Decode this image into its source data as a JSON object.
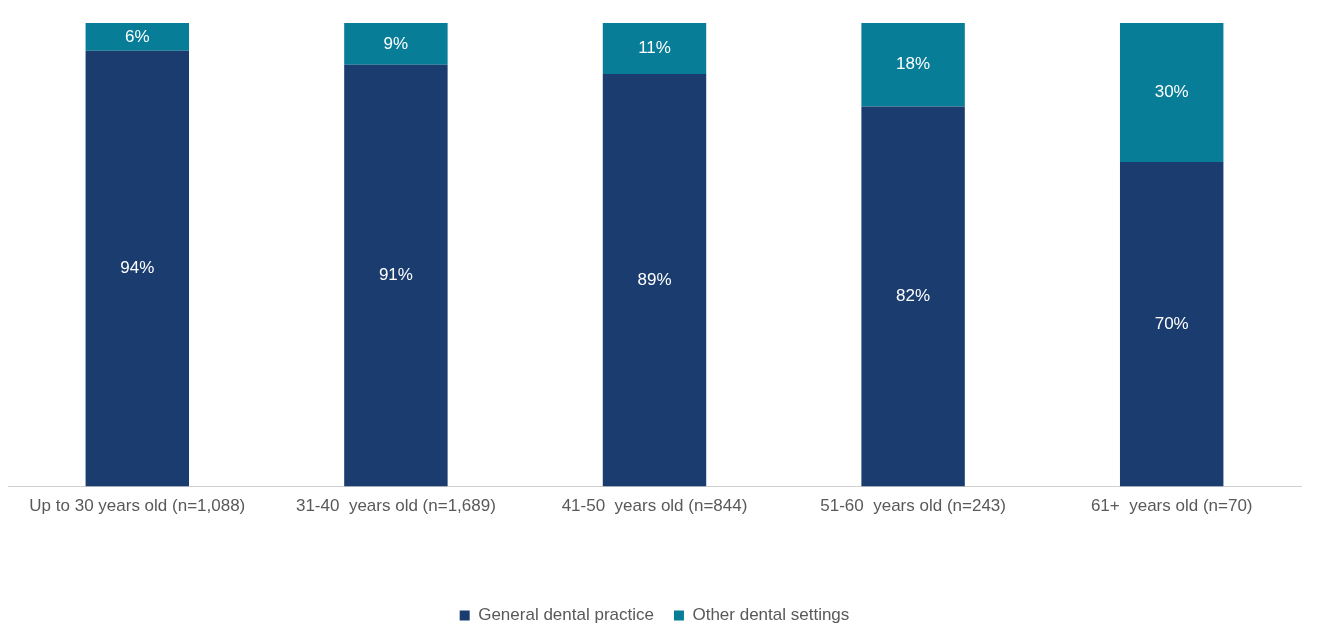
{
  "chart_data": {
    "type": "bar",
    "stacked": true,
    "categories": [
      "Up to 30 years old (n=1,088)",
      "31-40  years old (n=1,689)",
      "41-50  years old (n=844)",
      "51-60  years old (n=243)",
      "61+  years old (n=70)"
    ],
    "ylim": [
      0,
      100
    ],
    "tick_labels": "x",
    "grid": false,
    "legend": "bottom",
    "series": [
      {
        "name": "General dental practice",
        "color": "#1b3c6f",
        "values": [
          94,
          91,
          89,
          82,
          70
        ],
        "value_labels": [
          "94%",
          "91%",
          "89%",
          "82%",
          "70%"
        ]
      },
      {
        "name": "Other dental settings",
        "color": "#077d98",
        "values": [
          6,
          9,
          11,
          18,
          30
        ],
        "value_labels": [
          "6%",
          "9%",
          "11%",
          "18%",
          "30%"
        ]
      }
    ]
  }
}
